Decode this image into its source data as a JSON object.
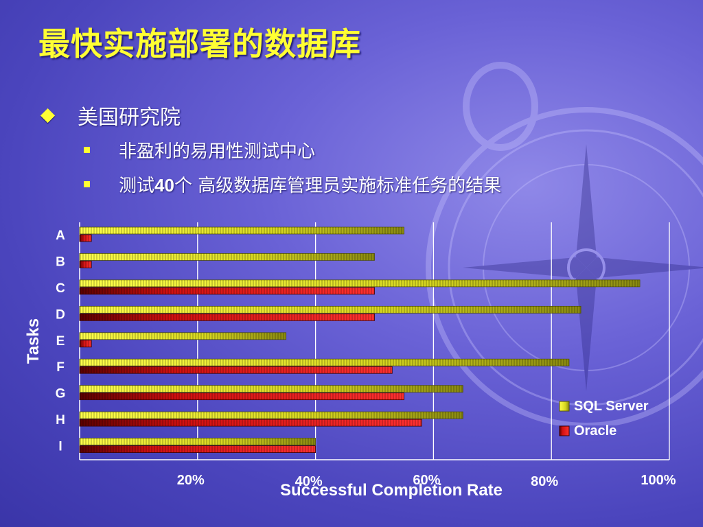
{
  "slide": {
    "title": "最快实施部署的数据库",
    "bullet": "美国研究院",
    "sub_bullets": [
      {
        "pre": "非盈利的易用性测试中心",
        "bold": "",
        "post": ""
      },
      {
        "pre": "测试",
        "bold": "40",
        "post": "个 高级数据库管理员实施标准任务的结果"
      }
    ]
  },
  "colors": {
    "title": "#ffff33",
    "sql_server": "#ffff33",
    "oracle": "#ff2020",
    "background": "#5a54cc"
  },
  "chart_data": {
    "type": "bar",
    "orientation": "horizontal",
    "categories": [
      "A",
      "B",
      "C",
      "D",
      "E",
      "F",
      "G",
      "H",
      "I"
    ],
    "series": [
      {
        "name": "SQL Server",
        "values": [
          55,
          50,
          95,
          85,
          35,
          83,
          65,
          65,
          40
        ]
      },
      {
        "name": "Oracle",
        "values": [
          2,
          2,
          50,
          50,
          2,
          53,
          55,
          58,
          40
        ]
      }
    ],
    "xlabel": "Successful Completion Rate",
    "ylabel": "Tasks",
    "xticks": [
      "20%",
      "40%",
      "60%",
      "80%",
      "100%"
    ],
    "xlim": [
      0,
      100
    ],
    "grid": true,
    "legend_position": "right"
  }
}
